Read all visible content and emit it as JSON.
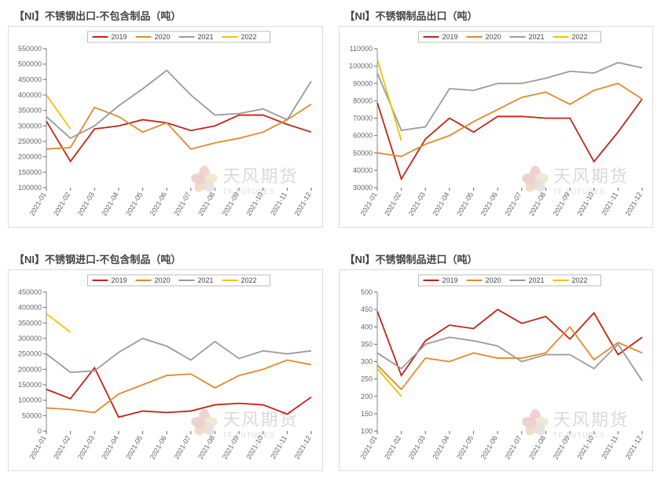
{
  "x_labels": [
    "2021-01",
    "2021-02",
    "2021-03",
    "2021-04",
    "2021-05",
    "2021-06",
    "2021-07",
    "2021-08",
    "2021-09",
    "2021-10",
    "2021-11",
    "2021-12"
  ],
  "series_colors": {
    "2019": "#c02418",
    "2020": "#e08a2c",
    "2021": "#9a9a9a",
    "2022": "#f2c200"
  },
  "series_names": [
    "2019",
    "2020",
    "2021",
    "2022"
  ],
  "legend_box_stroke": "#bbbbbb",
  "tick_color": "#666666",
  "tick_fontsize": 9,
  "x_tick_rotate": -60,
  "title_color": "#444444",
  "title_fontsize": 13,
  "line_width": 1.8,
  "chart_bg": "#ffffff",
  "watermark_text": "天风期货",
  "watermark_sub": "TF FUTURES",
  "charts": [
    {
      "title": "【NI】不锈钢出口-不包含制品（吨）",
      "ymin": 100000,
      "ymax": 550000,
      "ystep": 50000,
      "series": {
        "2019": [
          315000,
          185000,
          290000,
          300000,
          320000,
          310000,
          285000,
          300000,
          335000,
          335000,
          305000,
          280000
        ],
        "2020": [
          225000,
          230000,
          360000,
          330000,
          280000,
          310000,
          225000,
          245000,
          260000,
          280000,
          320000,
          370000
        ],
        "2021": [
          330000,
          260000,
          300000,
          365000,
          420000,
          480000,
          400000,
          335000,
          340000,
          355000,
          320000,
          445000
        ],
        "2022": [
          400000,
          290000
        ]
      }
    },
    {
      "title": "【NI】不锈钢制品出口（吨）",
      "ymin": 30000,
      "ymax": 110000,
      "ystep": 10000,
      "series": {
        "2019": [
          79000,
          35000,
          58000,
          70000,
          62000,
          71000,
          71000,
          70000,
          70000,
          45000,
          62000,
          81000
        ],
        "2020": [
          50000,
          48000,
          55000,
          60000,
          68000,
          75000,
          82000,
          85000,
          78000,
          86000,
          90000,
          81000
        ],
        "2021": [
          96000,
          63000,
          65000,
          87000,
          86000,
          90000,
          90000,
          93000,
          97000,
          96000,
          102000,
          99000
        ],
        "2022": [
          104000,
          57000
        ]
      }
    },
    {
      "title": "【NI】不锈钢进口-不包含制品（吨）",
      "ymin": 0,
      "ymax": 450000,
      "ystep": 50000,
      "series": {
        "2019": [
          135000,
          105000,
          205000,
          45000,
          65000,
          60000,
          65000,
          85000,
          90000,
          85000,
          55000,
          110000
        ],
        "2020": [
          75000,
          70000,
          60000,
          120000,
          150000,
          180000,
          185000,
          140000,
          180000,
          200000,
          230000,
          215000
        ],
        "2021": [
          250000,
          190000,
          195000,
          255000,
          300000,
          275000,
          230000,
          290000,
          235000,
          260000,
          250000,
          260000
        ],
        "2022": [
          380000,
          320000
        ]
      }
    },
    {
      "title": "【NI】不锈钢制品进口（吨）",
      "ymin": 100,
      "ymax": 500,
      "ystep": 50,
      "series": {
        "2019": [
          445,
          260,
          360,
          405,
          395,
          450,
          410,
          430,
          365,
          440,
          320,
          370
        ],
        "2020": [
          290,
          220,
          310,
          300,
          325,
          310,
          310,
          325,
          400,
          305,
          355,
          325
        ],
        "2021": [
          325,
          280,
          350,
          370,
          360,
          345,
          300,
          320,
          320,
          280,
          350,
          245
        ],
        "2022": [
          280,
          200
        ]
      }
    }
  ]
}
